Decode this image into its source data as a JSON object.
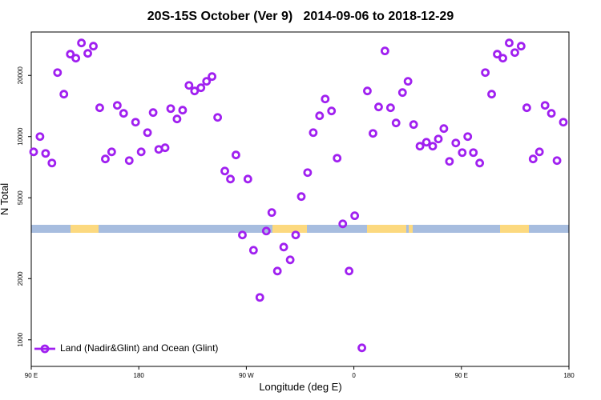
{
  "chart_data": {
    "type": "scatter",
    "title": "20S-15S October (Ver 9)   2014-09-06 to 2018-12-29",
    "xlabel": "Longitude (deg E)",
    "ylabel": "N Total",
    "xlim": [
      90,
      540
    ],
    "ylim": [
      740,
      32700
    ],
    "log_y": true,
    "grid": false,
    "legend": "bottom-left",
    "xticks": [
      {
        "value": 90,
        "label": "90 E"
      },
      180,
      {
        "value": 270,
        "label": "90 W"
      },
      {
        "value": 360,
        "label": "0"
      },
      {
        "value": 450,
        "label": "90 E"
      },
      {
        "value": 540,
        "label": "180"
      }
    ],
    "yticks": [
      1000,
      2000,
      5000,
      10000,
      20000
    ],
    "x": [
      92,
      97.3,
      102,
      107.3,
      112,
      117.3,
      122.7,
      127.3,
      132,
      137.3,
      142,
      147.3,
      152,
      157.3,
      162,
      167.3,
      172,
      177.3,
      182,
      187.3,
      192,
      196.7,
      202,
      206.7,
      212,
      216.7,
      222,
      226.7,
      232,
      236.7,
      241.3,
      246,
      252,
      256.7,
      261.3,
      266.7,
      271.3,
      276,
      281.3,
      286.7,
      291.3,
      296,
      301.3,
      306.7,
      311.3,
      316,
      321.3,
      326,
      331.3,
      336,
      341.3,
      346,
      350.7,
      356,
      360.7,
      366.7,
      371.3,
      376,
      380.7,
      386,
      390.7,
      395.3,
      400.7,
      405.3,
      410,
      415.3,
      420.7,
      426,
      430.7,
      435.3,
      440,
      445.3,
      450.7,
      455.3,
      460,
      465.3,
      470,
      475.3,
      480,
      484.7,
      490,
      494.7,
      500,
      504.7,
      510,
      515.3,
      520,
      525.3,
      530,
      535.3
    ],
    "series": [
      {
        "name": "Land (Nadir&Glint) and Ocean (Glint)",
        "color": "#a020f0",
        "values": [
          8410,
          10000,
          8265,
          7413,
          20650,
          16170,
          25440,
          24310,
          28880,
          25670,
          27860,
          13860,
          7760,
          8410,
          14240,
          13010,
          7620,
          11770,
          8410,
          10460,
          13130,
          8650,
          8810,
          13730,
          12210,
          13490,
          17860,
          16770,
          17390,
          18700,
          19740,
          12430,
          6770,
          6180,
          8120,
          3280,
          6180,
          2760,
          1617,
          3430,
          4230,
          2180,
          2860,
          2475,
          3280,
          5070,
          6650,
          10460,
          12660,
          15310,
          13370,
          7830,
          3720,
          2180,
          4080,
          913,
          16770,
          10370,
          13990,
          26390,
          13860,
          11670,
          16470,
          18700,
          11460,
          8970,
          9380,
          8970,
          9730,
          10950,
          7550,
          9300,
          8340,
          10000,
          8340,
          7410,
          20650,
          16170,
          25440,
          24310,
          28880,
          25900,
          27860,
          13860,
          7760,
          8410,
          14240,
          13010,
          7620,
          11770
        ]
      }
    ]
  }
}
